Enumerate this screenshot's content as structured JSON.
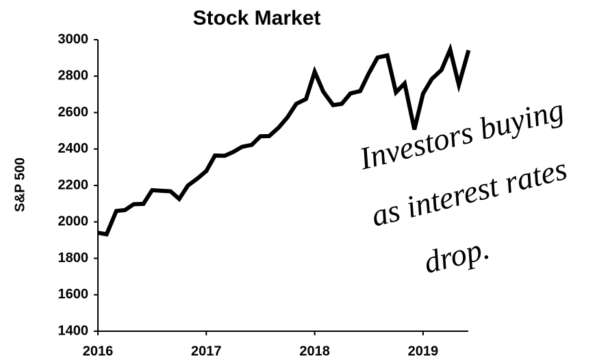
{
  "chart_data": {
    "type": "line",
    "title": "Stock Market",
    "y_label": "S&P 500",
    "x": [
      2016.0,
      2016.08,
      2016.17,
      2016.25,
      2016.33,
      2016.42,
      2016.5,
      2016.58,
      2016.67,
      2016.75,
      2016.83,
      2016.92,
      2017.0,
      2017.08,
      2017.17,
      2017.25,
      2017.33,
      2017.42,
      2017.5,
      2017.58,
      2017.67,
      2017.75,
      2017.83,
      2017.92,
      2018.0,
      2018.08,
      2018.17,
      2018.25,
      2018.33,
      2018.42,
      2018.5,
      2018.58,
      2018.67,
      2018.75,
      2018.83,
      2018.92,
      2019.0,
      2019.08,
      2019.17,
      2019.25,
      2019.33,
      2019.42
    ],
    "series": [
      {
        "name": "S&P 500",
        "color": "#000000",
        "values": [
          1940,
          1932,
          2060,
          2065,
          2097,
          2099,
          2174,
          2171,
          2168,
          2126,
          2199,
          2239,
          2279,
          2364,
          2363,
          2384,
          2412,
          2423,
          2470,
          2471,
          2519,
          2575,
          2648,
          2674,
          2824,
          2714,
          2641,
          2648,
          2705,
          2718,
          2816,
          2902,
          2914,
          2711,
          2760,
          2507,
          2704,
          2784,
          2834,
          2946,
          2752,
          2942
        ]
      }
    ],
    "xlim": [
      2016,
      2019.42
    ],
    "xticks": [
      2016,
      2017,
      2018,
      2019
    ],
    "ylim": [
      1400,
      3000
    ],
    "yticks": [
      1400,
      1600,
      1800,
      2000,
      2200,
      2400,
      2600,
      2800,
      3000
    ],
    "annotation": [
      "Investors buying",
      "as interest rates",
      "drop."
    ]
  }
}
